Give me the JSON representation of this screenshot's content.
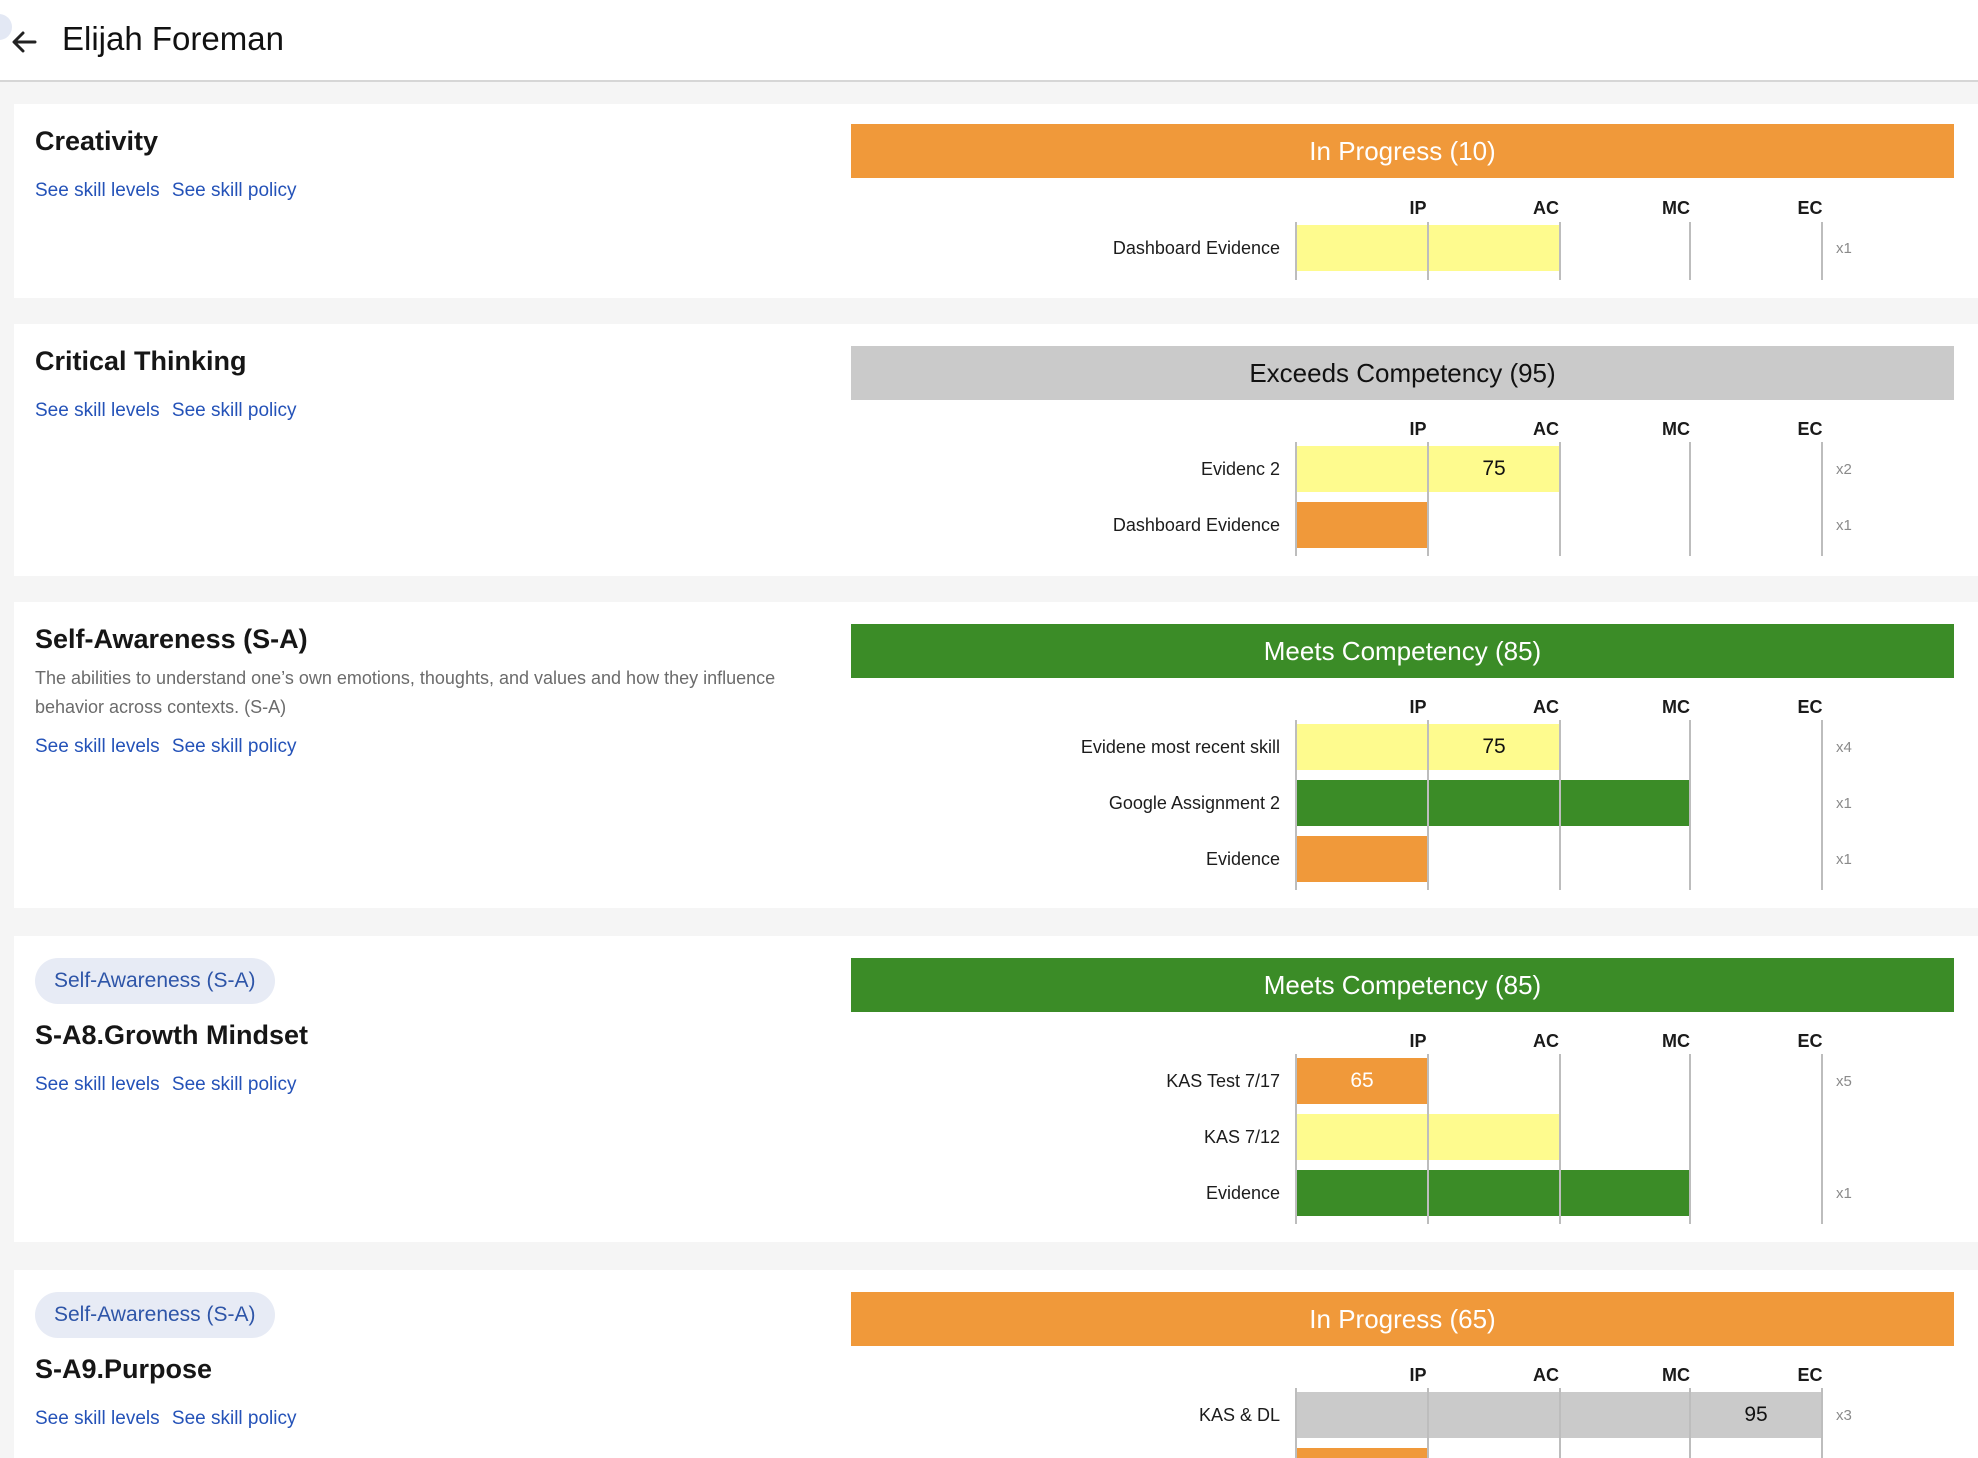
{
  "header": {
    "student_name": "Elijah Foreman",
    "back_icon": "arrow-left-icon"
  },
  "links": {
    "levels": "See skill levels",
    "policy": "See skill policy"
  },
  "scale_headers": [
    "IP",
    "AC",
    "MC",
    "EC"
  ],
  "colors": {
    "ip": "#f0993a",
    "ac": "#fefb8e",
    "mc": "#3b8c27",
    "ec": "#cacaca",
    "link": "#2452b8",
    "chip_bg": "#e7ebf5"
  },
  "skills": [
    {
      "title": "Creativity",
      "status": "In Progress (10)",
      "status_level": "IP",
      "rows": [
        {
          "label": "Dashboard Evidence",
          "level": "AC",
          "value": "",
          "weight": "x1"
        }
      ]
    },
    {
      "title": "Critical Thinking",
      "status": "Exceeds Competency (95)",
      "status_level": "EC",
      "rows": [
        {
          "label": "Evidenc 2",
          "level": "AC",
          "value": "75",
          "weight": "x2"
        },
        {
          "label": "Dashboard Evidence",
          "level": "IP",
          "value": "",
          "weight": "x1"
        }
      ]
    },
    {
      "title": "Self-Awareness (S-A)",
      "description": "The abilities to understand one’s own emotions, thoughts, and values and how they influence behavior across contexts. (S-A)",
      "status": "Meets Competency (85)",
      "status_level": "MC",
      "rows": [
        {
          "label": "Evidene most recent skill",
          "level": "AC",
          "value": "75",
          "weight": "x4"
        },
        {
          "label": "Google Assignment 2",
          "level": "MC",
          "value": "",
          "weight": "x1"
        },
        {
          "label": "Evidence",
          "level": "IP",
          "value": "",
          "weight": "x1"
        }
      ]
    },
    {
      "parent": "Self-Awareness (S-A)",
      "title": "S-A8.Growth Mindset",
      "status": "Meets Competency (85)",
      "status_level": "MC",
      "rows": [
        {
          "label": "KAS Test 7/17",
          "level": "IP",
          "value": "65",
          "weight": "x5"
        },
        {
          "label": "KAS 7/12",
          "level": "AC",
          "value": "",
          "weight": ""
        },
        {
          "label": "Evidence",
          "level": "MC",
          "value": "",
          "weight": "x1"
        }
      ]
    },
    {
      "parent": "Self-Awareness (S-A)",
      "title": "S-A9.Purpose",
      "status": "In Progress (65)",
      "status_level": "IP",
      "rows": [
        {
          "label": "KAS & DL",
          "level": "EC",
          "value": "95",
          "weight": "x3"
        }
      ]
    }
  ]
}
